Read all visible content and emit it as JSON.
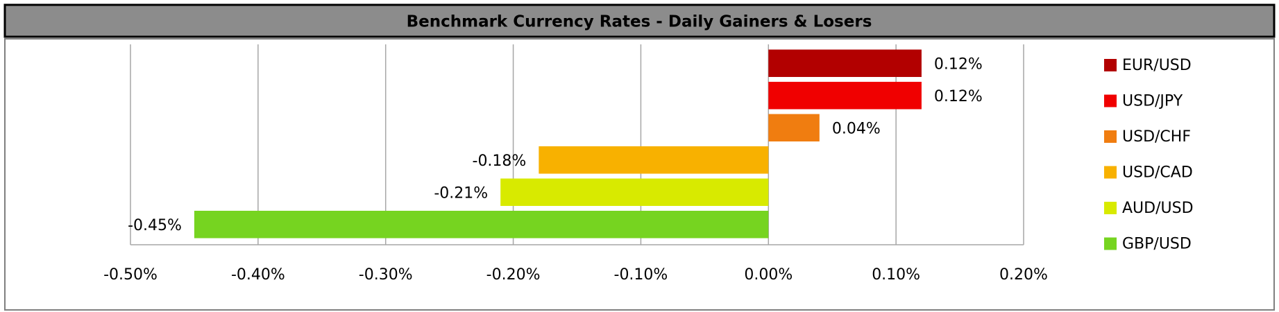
{
  "chart_data": {
    "type": "hbar",
    "title": "Benchmark Currency Rates - Daily Gainers & Losers",
    "categories": [
      "EUR/USD",
      "USD/JPY",
      "USD/CHF",
      "USD/CAD",
      "AUD/USD",
      "GBP/USD"
    ],
    "values": [
      0.12,
      0.12,
      0.04,
      -0.18,
      -0.21,
      -0.45
    ],
    "value_labels": [
      "0.12%",
      "0.12%",
      "0.04%",
      "-0.18%",
      "-0.21%",
      "-0.45%"
    ],
    "colors": [
      "#b20000",
      "#f00000",
      "#f07d10",
      "#f8b100",
      "#d8ea00",
      "#76d420"
    ],
    "xlim": [
      -0.5,
      0.2
    ],
    "xticks": [
      {
        "value": -0.5,
        "label": "-0.50%"
      },
      {
        "value": -0.4,
        "label": "-0.40%"
      },
      {
        "value": -0.3,
        "label": "-0.30%"
      },
      {
        "value": -0.2,
        "label": "-0.20%"
      },
      {
        "value": -0.1,
        "label": "-0.10%"
      },
      {
        "value": 0,
        "label": "0.00%"
      },
      {
        "value": 0.1,
        "label": "0.10%"
      },
      {
        "value": 0.2,
        "label": "0.20%"
      }
    ],
    "grid": true,
    "legend": "right"
  }
}
